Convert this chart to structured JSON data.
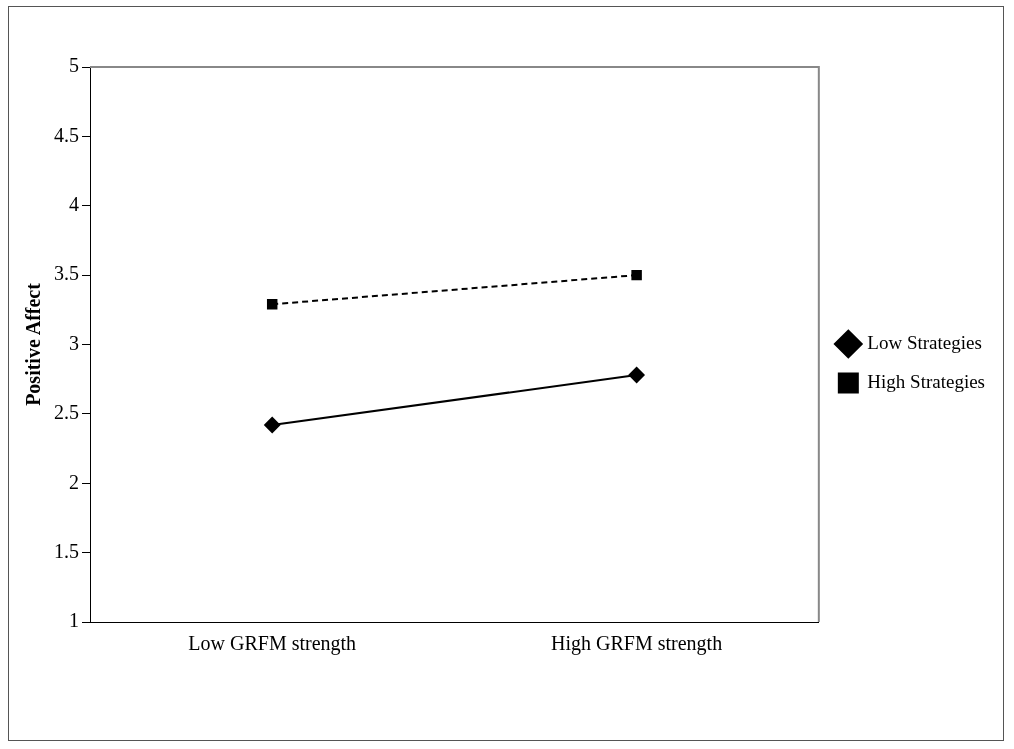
{
  "chart_data": {
    "type": "line",
    "ylabel": "Positive Affect",
    "categories": [
      "Low GRFM strength",
      "High GRFM strength"
    ],
    "series": [
      {
        "name": "Low Strategies",
        "color": "#000000",
        "values": [
          2.42,
          2.78
        ],
        "marker": "diamond",
        "line_style": "solid"
      },
      {
        "name": "High Strategies",
        "color": "#000000",
        "values": [
          3.29,
          3.5
        ],
        "marker": "square",
        "line_style": "dashed"
      }
    ],
    "ylim": [
      1,
      5
    ],
    "yticks": [
      1,
      1.5,
      2,
      2.5,
      3,
      3.5,
      4,
      4.5,
      5
    ],
    "grid": false,
    "legend": "right"
  }
}
